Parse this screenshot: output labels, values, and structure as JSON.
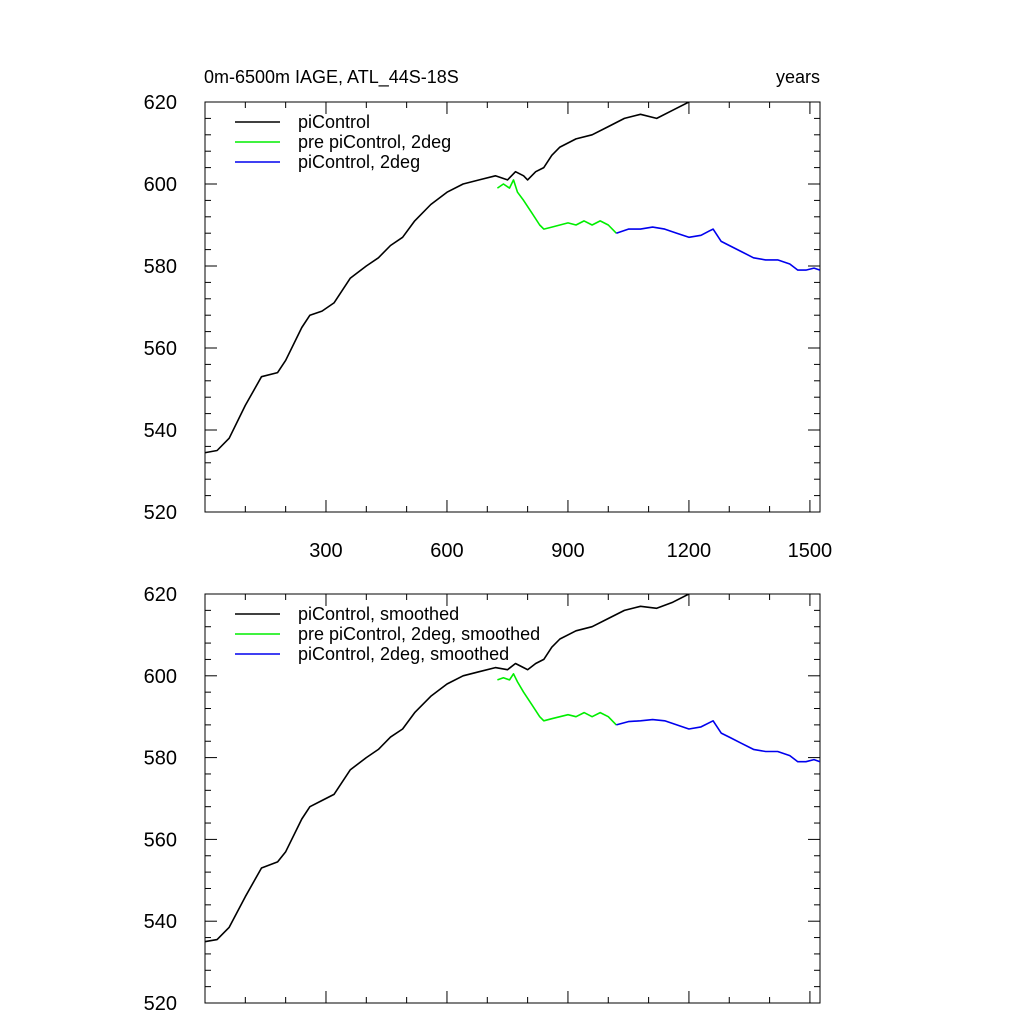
{
  "title_left": "0m-6500m IAGE, ATL_44S-18S",
  "title_right": "years",
  "colors": {
    "black": "#000000",
    "green": "#00ee00",
    "blue": "#0000ee"
  },
  "chart_data": [
    {
      "type": "line",
      "title": "0m-6500m IAGE, ATL_44S-18S",
      "ylabel_right": "years",
      "xlim": [
        0,
        1525
      ],
      "ylim": [
        520,
        620
      ],
      "x_ticks": [
        300,
        600,
        900,
        1200,
        1500
      ],
      "x_tick_labels": [
        "300",
        "600",
        "900",
        "1200",
        "1500"
      ],
      "y_ticks": [
        520,
        540,
        560,
        580,
        600,
        620
      ],
      "y_tick_labels": [
        "520",
        "540",
        "560",
        "580",
        "600",
        "620"
      ],
      "legend": "top-left",
      "series": [
        {
          "name": "piControl",
          "color": "#000000",
          "x": [
            1,
            30,
            60,
            100,
            140,
            180,
            200,
            240,
            260,
            290,
            320,
            360,
            400,
            430,
            460,
            490,
            520,
            560,
            600,
            640,
            680,
            720,
            750,
            770,
            790,
            800,
            820,
            840,
            860,
            880,
            920,
            960,
            1000,
            1040,
            1080,
            1120,
            1160,
            1200
          ],
          "y": [
            534.5,
            535,
            538,
            546,
            553,
            554,
            557,
            565,
            568,
            569,
            571,
            577,
            580,
            582,
            585,
            587,
            591,
            595,
            598,
            600,
            601,
            602,
            601,
            603,
            602,
            601,
            603,
            604,
            607,
            609,
            611,
            612,
            614,
            616,
            617,
            616,
            618,
            620
          ]
        },
        {
          "name": "pre piControl, 2deg",
          "color": "#00ee00",
          "x": [
            725,
            740,
            755,
            765,
            775,
            790,
            810,
            830,
            840,
            860,
            880,
            900,
            920,
            940,
            960,
            980,
            1000,
            1020
          ],
          "y": [
            599,
            600,
            599,
            601,
            598,
            596,
            593,
            590,
            589,
            589.5,
            590,
            590.5,
            590,
            591,
            590,
            591,
            590,
            588
          ]
        },
        {
          "name": "piControl, 2deg",
          "color": "#0000ee",
          "x": [
            1020,
            1050,
            1080,
            1110,
            1140,
            1170,
            1200,
            1230,
            1250,
            1260,
            1280,
            1300,
            1330,
            1360,
            1390,
            1420,
            1450,
            1470,
            1490,
            1510,
            1525
          ],
          "y": [
            588,
            589,
            589,
            589.5,
            589,
            588,
            587,
            587.5,
            588.5,
            589,
            586,
            585,
            583.5,
            582,
            581.5,
            581.5,
            580.5,
            579,
            579,
            579.5,
            579
          ]
        }
      ]
    },
    {
      "type": "line",
      "xlim": [
        0,
        1525
      ],
      "ylim": [
        520,
        620
      ],
      "x_ticks": [
        300,
        600,
        900,
        1200,
        1500
      ],
      "y_ticks": [
        520,
        540,
        560,
        580,
        600,
        620
      ],
      "y_tick_labels": [
        "520",
        "540",
        "560",
        "580",
        "600",
        "620"
      ],
      "legend": "top-left",
      "series": [
        {
          "name": "piControl, smoothed",
          "color": "#000000",
          "x": [
            1,
            30,
            60,
            100,
            140,
            180,
            200,
            240,
            260,
            290,
            320,
            360,
            400,
            430,
            460,
            490,
            520,
            560,
            600,
            640,
            680,
            720,
            750,
            770,
            790,
            800,
            820,
            840,
            860,
            880,
            920,
            960,
            1000,
            1040,
            1080,
            1120,
            1160,
            1200
          ],
          "y": [
            535,
            535.5,
            538.5,
            546,
            553,
            554.5,
            557,
            565,
            568,
            569.5,
            571,
            577,
            580,
            582,
            585,
            587,
            591,
            595,
            598,
            600,
            601,
            602,
            601.5,
            603,
            602,
            601.5,
            603,
            604,
            607,
            609,
            611,
            612,
            614,
            616,
            617,
            616.5,
            618,
            620
          ]
        },
        {
          "name": "pre piControl, 2deg, smoothed",
          "color": "#00ee00",
          "x": [
            725,
            740,
            755,
            765,
            775,
            790,
            810,
            830,
            840,
            860,
            880,
            900,
            920,
            940,
            960,
            980,
            1000,
            1020
          ],
          "y": [
            599,
            599.5,
            599,
            600.5,
            598.5,
            596,
            593,
            590,
            589,
            589.5,
            590,
            590.5,
            590,
            591,
            590,
            591,
            590,
            588
          ]
        },
        {
          "name": "piControl, 2deg, smoothed",
          "color": "#0000ee",
          "x": [
            1020,
            1050,
            1080,
            1110,
            1140,
            1170,
            1200,
            1230,
            1250,
            1260,
            1280,
            1300,
            1330,
            1360,
            1390,
            1420,
            1450,
            1470,
            1490,
            1510,
            1525
          ],
          "y": [
            588,
            588.8,
            589,
            589.3,
            589,
            588,
            587,
            587.5,
            588.5,
            589,
            586,
            585,
            583.5,
            582,
            581.5,
            581.5,
            580.5,
            579,
            579,
            579.5,
            579
          ]
        }
      ]
    }
  ]
}
